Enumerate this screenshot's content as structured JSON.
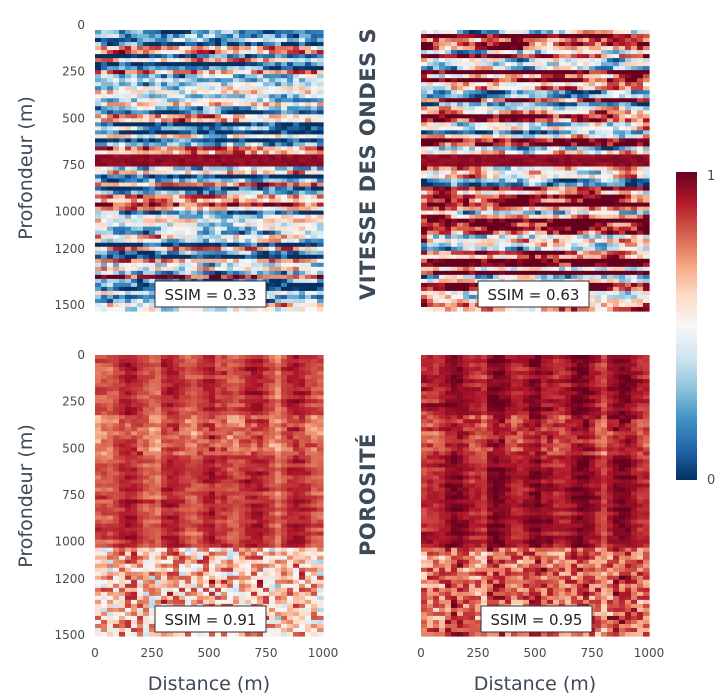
{
  "chart_data": {
    "type": "heatmap",
    "colormap": "RdBu_r",
    "colorbar": {
      "min": 0,
      "max": 1,
      "tick_labels": [
        "0",
        "1"
      ]
    },
    "x_axis": {
      "label": "Distance (m)",
      "range": [
        0,
        1000
      ],
      "ticks": [
        "0",
        "250",
        "500",
        "750",
        "1000"
      ]
    },
    "y_axis": {
      "label": "Profondeur (m)",
      "range": [
        0,
        1500
      ],
      "ticks": [
        "0",
        "250",
        "500",
        "750",
        "1000",
        "1200",
        "1500"
      ],
      "inverted": true
    },
    "rows": [
      {
        "title": "VITESSE DES ONDES S",
        "panels": [
          {
            "ssim_label": "SSIM = 0.33",
            "ssim": 0.33
          },
          {
            "ssim_label": "SSIM = 0.63",
            "ssim": 0.63
          }
        ]
      },
      {
        "title": "POROSITÉ",
        "panels": [
          {
            "ssim_label": "SSIM = 0.91",
            "ssim": 0.91
          },
          {
            "ssim_label": "SSIM = 0.95",
            "ssim": 0.95
          }
        ]
      }
    ]
  }
}
